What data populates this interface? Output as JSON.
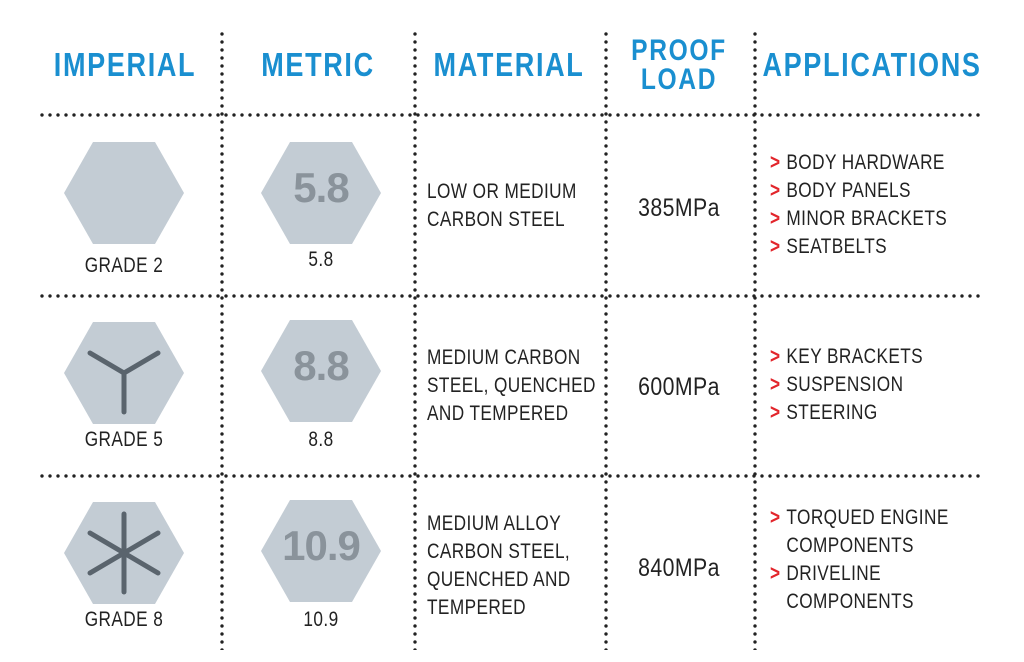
{
  "headers": {
    "imperial": "IMPERIAL",
    "metric": "METRIC",
    "material": "MATERIAL",
    "proof_load_line1": "PROOF",
    "proof_load_line2": "LOAD",
    "applications": "APPLICATIONS"
  },
  "rows": [
    {
      "imperial_grade": "GRADE 2",
      "metric_mark": "5.8",
      "metric_label": "5.8",
      "material_lines": [
        "LOW OR MEDIUM",
        "CARBON STEEL"
      ],
      "proof_load": "385MPa",
      "applications": [
        "BODY HARDWARE",
        "BODY PANELS",
        "MINOR BRACKETS",
        "SEATBELTS"
      ]
    },
    {
      "imperial_grade": "GRADE 5",
      "metric_mark": "8.8",
      "metric_label": "8.8",
      "material_lines": [
        "MEDIUM CARBON",
        "STEEL, QUENCHED",
        "AND TEMPERED"
      ],
      "proof_load": "600MPa",
      "applications": [
        "KEY BRACKETS",
        "SUSPENSION",
        "STEERING"
      ]
    },
    {
      "imperial_grade": "GRADE 8",
      "metric_mark": "10.9",
      "metric_label": "10.9",
      "material_lines": [
        "MEDIUM ALLOY",
        "CARBON STEEL,",
        "QUENCHED AND",
        "TEMPERED"
      ],
      "proof_load": "840MPa",
      "applications": [
        "TORQUED ENGINE\nCOMPONENTS",
        "DRIVELINE\nCOMPONENTS"
      ]
    }
  ],
  "icons": {
    "arrow": "chevron-right-icon",
    "imperial_marks": [
      "hexagon-plain-icon",
      "hexagon-three-line-icon",
      "hexagon-six-line-icon"
    ]
  },
  "colors": {
    "header": "#1a8fd0",
    "arrow": "#e2252b",
    "hexagon": "#c3ccd4",
    "hex_mark": "#5a646d",
    "hex_text": "#8a939b"
  }
}
